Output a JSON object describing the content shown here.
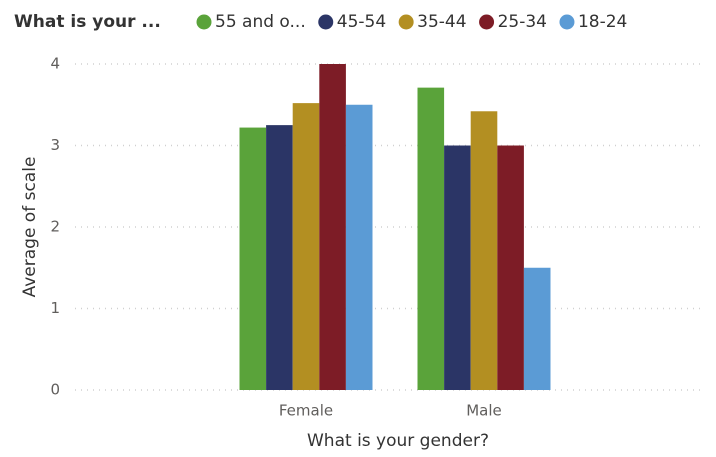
{
  "chart_data": {
    "type": "bar",
    "legend_title": "What is your ...",
    "x_label": "What is your gender?",
    "y_label": "Average of scale",
    "categories": [
      "Female",
      "Male"
    ],
    "series": [
      {
        "name": "55 and o...",
        "color": "#5aa33a",
        "values": [
          3.22,
          3.71
        ]
      },
      {
        "name": "45-54",
        "color": "#2b3566",
        "values": [
          3.25,
          3.0
        ]
      },
      {
        "name": "35-44",
        "color": "#b38f22",
        "values": [
          3.52,
          3.42
        ]
      },
      {
        "name": "25-34",
        "color": "#7d1c26",
        "values": [
          4.0,
          3.0
        ]
      },
      {
        "name": "18-24",
        "color": "#5b9bd5",
        "values": [
          3.5,
          1.5
        ]
      }
    ],
    "ylim": [
      0,
      4
    ],
    "yticks": [
      0,
      1,
      2,
      3,
      4
    ],
    "grid": true,
    "legend": "top"
  }
}
